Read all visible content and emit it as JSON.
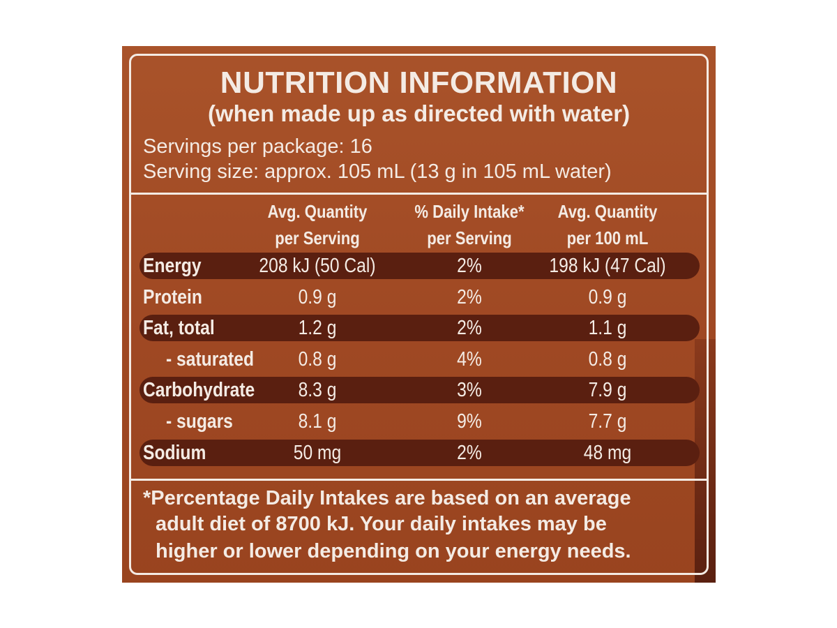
{
  "title": "NUTRITION INFORMATION",
  "subtitle": "(when made up as directed with water)",
  "servings_per_package": "Servings per package: 16",
  "serving_size": "Serving size: approx. 105 mL (13 g in 105 mL water)",
  "columns": [
    {
      "line1": "Avg. Quantity",
      "line2": "per Serving"
    },
    {
      "line1": "% Daily Intake*",
      "line2": "per Serving"
    },
    {
      "line1": "Avg. Quantity",
      "line2": "per 100 mL"
    }
  ],
  "rows": [
    {
      "label": "Energy",
      "per_serving": "208 kJ (50 Cal)",
      "daily_intake": "2%",
      "per_100ml": "198 kJ (47 Cal)"
    },
    {
      "label": "Protein",
      "per_serving": "0.9 g",
      "daily_intake": "2%",
      "per_100ml": "0.9 g"
    },
    {
      "label": "Fat, total",
      "per_serving": "1.2 g",
      "daily_intake": "2%",
      "per_100ml": "1.1 g"
    },
    {
      "label": "- saturated",
      "per_serving": "0.8 g",
      "daily_intake": "4%",
      "per_100ml": "0.8 g"
    },
    {
      "label": "Carbohydrate",
      "per_serving": "8.3 g",
      "daily_intake": "3%",
      "per_100ml": "7.9 g"
    },
    {
      "label": "- sugars",
      "per_serving": "8.1 g",
      "daily_intake": "9%",
      "per_100ml": "7.7 g"
    },
    {
      "label": "Sodium",
      "per_serving": "50 mg",
      "daily_intake": "2%",
      "per_100ml": "48 mg"
    }
  ],
  "footnote": {
    "line1": "*Percentage Daily Intakes are based on an average",
    "line2": "adult diet of 8700 kJ. Your daily intakes may be",
    "line3": "higher or lower depending on your energy needs."
  },
  "colors": {
    "panel": "#a24a24",
    "band": "#5a1f10",
    "text": "#f4ebe4"
  }
}
